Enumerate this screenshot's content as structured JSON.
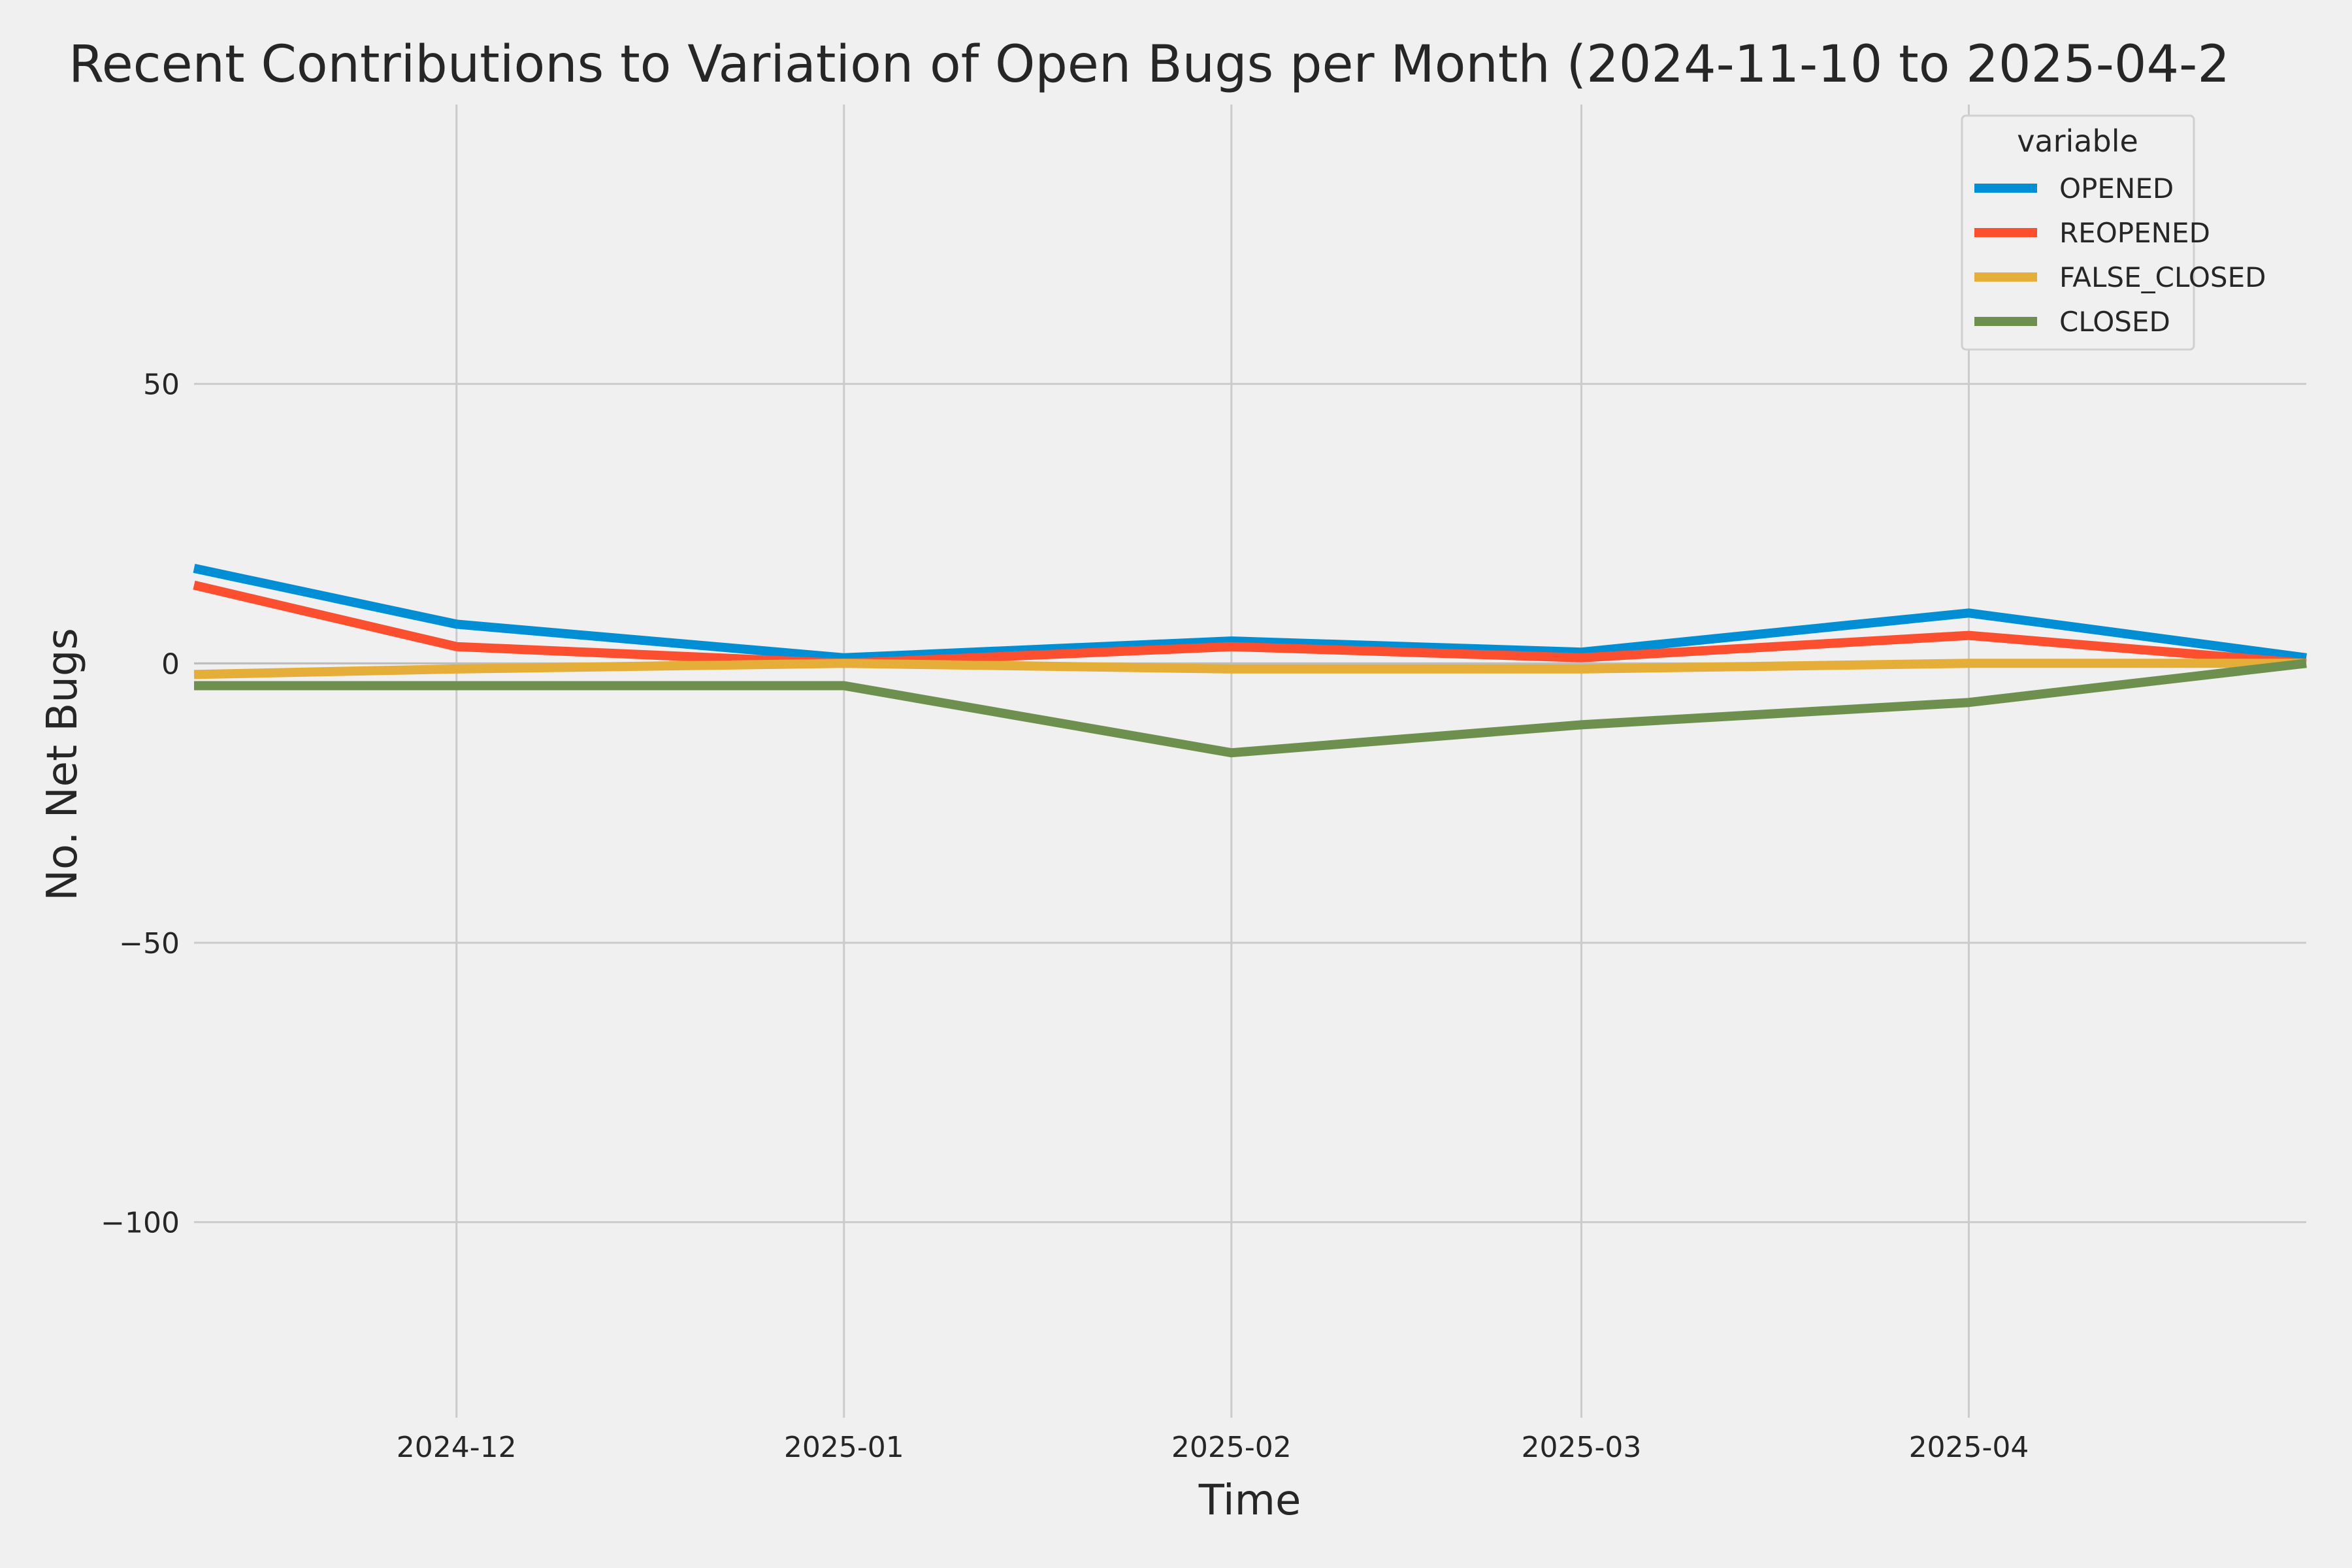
{
  "chart_data": {
    "type": "line",
    "title": "Recent Contributions to Variation of Open Bugs per Month (2024-11-10 to 2025-04-2",
    "xlabel": "Time",
    "ylabel": "No. Net Bugs",
    "x_axis_type": "date",
    "xlim": [
      "2024-11-10",
      "2025-04-28"
    ],
    "ylim": [
      -135,
      100
    ],
    "xticks": [
      {
        "date": "2024-12-01",
        "label": "2024-12"
      },
      {
        "date": "2025-01-01",
        "label": "2025-01"
      },
      {
        "date": "2025-02-01",
        "label": "2025-02"
      },
      {
        "date": "2025-03-01",
        "label": "2025-03"
      },
      {
        "date": "2025-04-01",
        "label": "2025-04"
      }
    ],
    "yticks": [
      {
        "value": 50,
        "label": "50"
      },
      {
        "value": 0,
        "label": "0"
      },
      {
        "value": -50,
        "label": "−50"
      },
      {
        "value": -100,
        "label": "−100"
      }
    ],
    "grid": true,
    "legend": {
      "title": "variable",
      "placement": "top-right"
    },
    "x": [
      "2024-11-10",
      "2024-12-01",
      "2025-01-01",
      "2025-02-01",
      "2025-03-01",
      "2025-04-01",
      "2025-04-28"
    ],
    "series": [
      {
        "name": "OPENED",
        "color": "#008fd5",
        "values": [
          17,
          7,
          1,
          4,
          2,
          9,
          1
        ]
      },
      {
        "name": "REOPENED",
        "color": "#fc4f30",
        "values": [
          14,
          3,
          0,
          3,
          1,
          5,
          0
        ]
      },
      {
        "name": "FALSE_CLOSED",
        "color": "#e5ae38",
        "values": [
          -2,
          -1,
          0,
          -1,
          -1,
          0,
          0
        ]
      },
      {
        "name": "CLOSED",
        "color": "#6d904f",
        "values": [
          -4,
          -4,
          -4,
          -16,
          -11,
          -7,
          0
        ]
      }
    ]
  }
}
